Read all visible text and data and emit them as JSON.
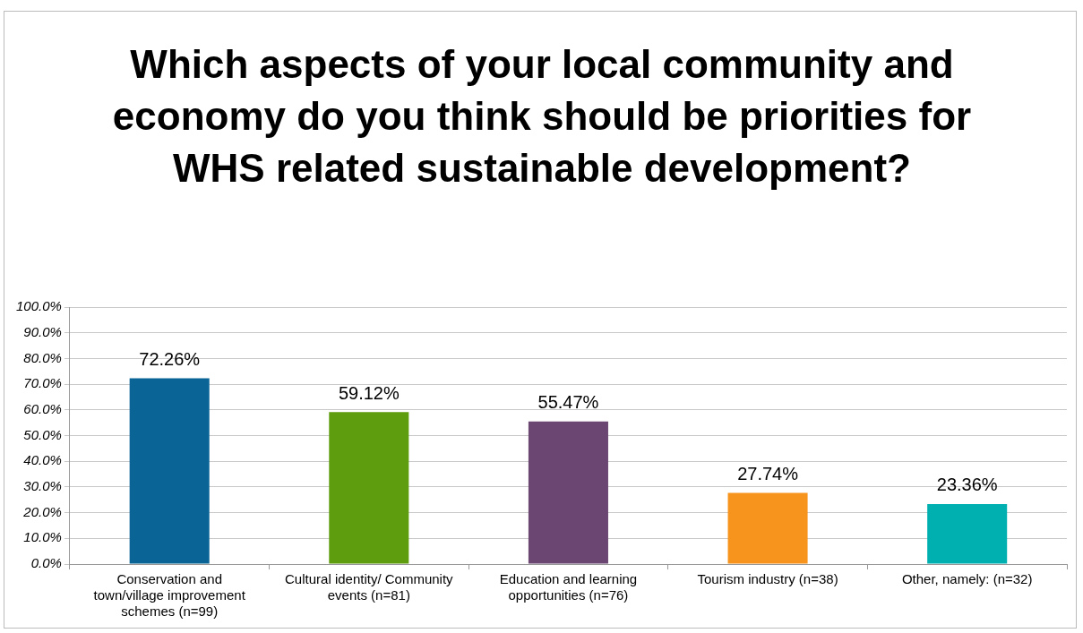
{
  "chart_data": {
    "type": "bar",
    "title": "Which aspects of your local community and economy do you think should be priorities for WHS related sustainable development?",
    "categories": [
      "Conservation and town/village improvement schemes (n=99)",
      "Cultural identity/ Community events (n=81)",
      "Education and learning opportunities (n=76)",
      "Tourism industry (n=38)",
      "Other, namely: (n=32)"
    ],
    "values": [
      72.26,
      59.12,
      55.47,
      27.74,
      23.36
    ],
    "colors": [
      "#0a6496",
      "#5e9e0e",
      "#6b4672",
      "#f7941d",
      "#00b0b0"
    ],
    "value_labels": [
      "72.26%",
      "59.12%",
      "55.47%",
      "27.74%",
      "23.36%"
    ],
    "ylim": [
      0,
      100
    ],
    "yticks": [
      {
        "value": 0,
        "label": "0.0%"
      },
      {
        "value": 10,
        "label": "10.0%"
      },
      {
        "value": 20,
        "label": "20.0%"
      },
      {
        "value": 30,
        "label": "30.0%"
      },
      {
        "value": 40,
        "label": "40.0%"
      },
      {
        "value": 50,
        "label": "50.0%"
      },
      {
        "value": 60,
        "label": "60.0%"
      },
      {
        "value": 70,
        "label": "70.0%"
      },
      {
        "value": 80,
        "label": "80.0%"
      },
      {
        "value": 90,
        "label": "90.0%"
      },
      {
        "value": 100,
        "label": "100.0%"
      }
    ],
    "grid": "y",
    "legend": false
  }
}
